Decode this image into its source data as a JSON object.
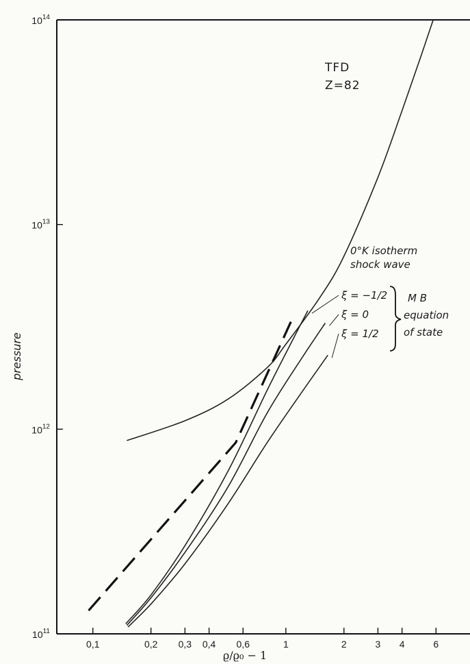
{
  "chart_data": {
    "type": "line",
    "xlabel": "ϱ/ϱ₀ − 1",
    "ylabel": "pressure",
    "x_scale": "log",
    "y_scale": "log",
    "xlim": [
      0.065,
      9
    ],
    "ylim": [
      100000000000.0,
      100000000000000.0
    ],
    "x_ticks": [
      {
        "value": 0.1,
        "label": "0,1"
      },
      {
        "value": 0.2,
        "label": "0,2"
      },
      {
        "value": 0.3,
        "label": "0,3"
      },
      {
        "value": 0.4,
        "label": "0,4"
      },
      {
        "value": 0.6,
        "label": "0,6"
      },
      {
        "value": 1,
        "label": "1"
      },
      {
        "value": 2,
        "label": "2"
      },
      {
        "value": 3,
        "label": "3"
      },
      {
        "value": 4,
        "label": "4"
      },
      {
        "value": 6,
        "label": "6"
      }
    ],
    "y_ticks": [
      {
        "value": 100000000000.0,
        "base": "10",
        "exp": "11"
      },
      {
        "value": 1000000000000.0,
        "base": "10",
        "exp": "12"
      },
      {
        "value": 10000000000000.0,
        "base": "10",
        "exp": "13"
      },
      {
        "value": 100000000000000.0,
        "base": "10",
        "exp": "14"
      }
    ],
    "series": [
      {
        "key": "tfd",
        "style": "solid",
        "points": [
          [
            0.15,
            880000000000.0
          ],
          [
            0.3,
            1100000000000.0
          ],
          [
            0.5,
            1400000000000.0
          ],
          [
            0.8,
            2000000000000.0
          ],
          [
            1.0,
            2600000000000.0
          ],
          [
            1.5,
            4400000000000.0
          ],
          [
            2.0,
            7000000000000.0
          ],
          [
            3.0,
            17000000000000.0
          ],
          [
            4.0,
            36000000000000.0
          ],
          [
            5.0,
            66000000000000.0
          ],
          [
            5.8,
            100000000000000.0
          ]
        ]
      },
      {
        "key": "isotherm",
        "style": "dashed",
        "points": [
          [
            0.095,
            130000000000.0
          ],
          [
            0.55,
            860000000000.0
          ],
          [
            1.1,
            3600000000000.0
          ]
        ]
      },
      {
        "key": "xi_neg_half",
        "style": "solid",
        "points": [
          [
            0.148,
            112000000000.0
          ],
          [
            0.2,
            155000000000.0
          ],
          [
            0.3,
            270000000000.0
          ],
          [
            0.5,
            620000000000.0
          ],
          [
            0.8,
            1550000000000.0
          ],
          [
            1.1,
            2800000000000.0
          ],
          [
            1.3,
            3800000000000.0
          ]
        ]
      },
      {
        "key": "xi_zero",
        "style": "solid",
        "points": [
          [
            0.15,
            110000000000.0
          ],
          [
            0.2,
            150000000000.0
          ],
          [
            0.3,
            250000000000.0
          ],
          [
            0.5,
            520000000000.0
          ],
          [
            0.8,
            1200000000000.0
          ],
          [
            1.2,
            2200000000000.0
          ],
          [
            1.6,
            3300000000000.0
          ]
        ]
      },
      {
        "key": "xi_pos_half",
        "style": "solid",
        "points": [
          [
            0.152,
            108000000000.0
          ],
          [
            0.2,
            140000000000.0
          ],
          [
            0.3,
            220000000000.0
          ],
          [
            0.5,
            430000000000.0
          ],
          [
            0.8,
            860000000000.0
          ],
          [
            1.2,
            1500000000000.0
          ],
          [
            1.65,
            2300000000000.0
          ]
        ]
      }
    ],
    "annotations": {
      "tfd_line1": "TFD",
      "tfd_line2": "Z=82",
      "isotherm": "0°K isotherm",
      "shock": "shock wave",
      "xi_label_1": "ξ = −1/2",
      "xi_label_2": "ξ = 0",
      "xi_label_3": "ξ = 1/2",
      "mb_line1": "M  B",
      "mb_line2": "equation",
      "mb_line3": "of state"
    }
  }
}
